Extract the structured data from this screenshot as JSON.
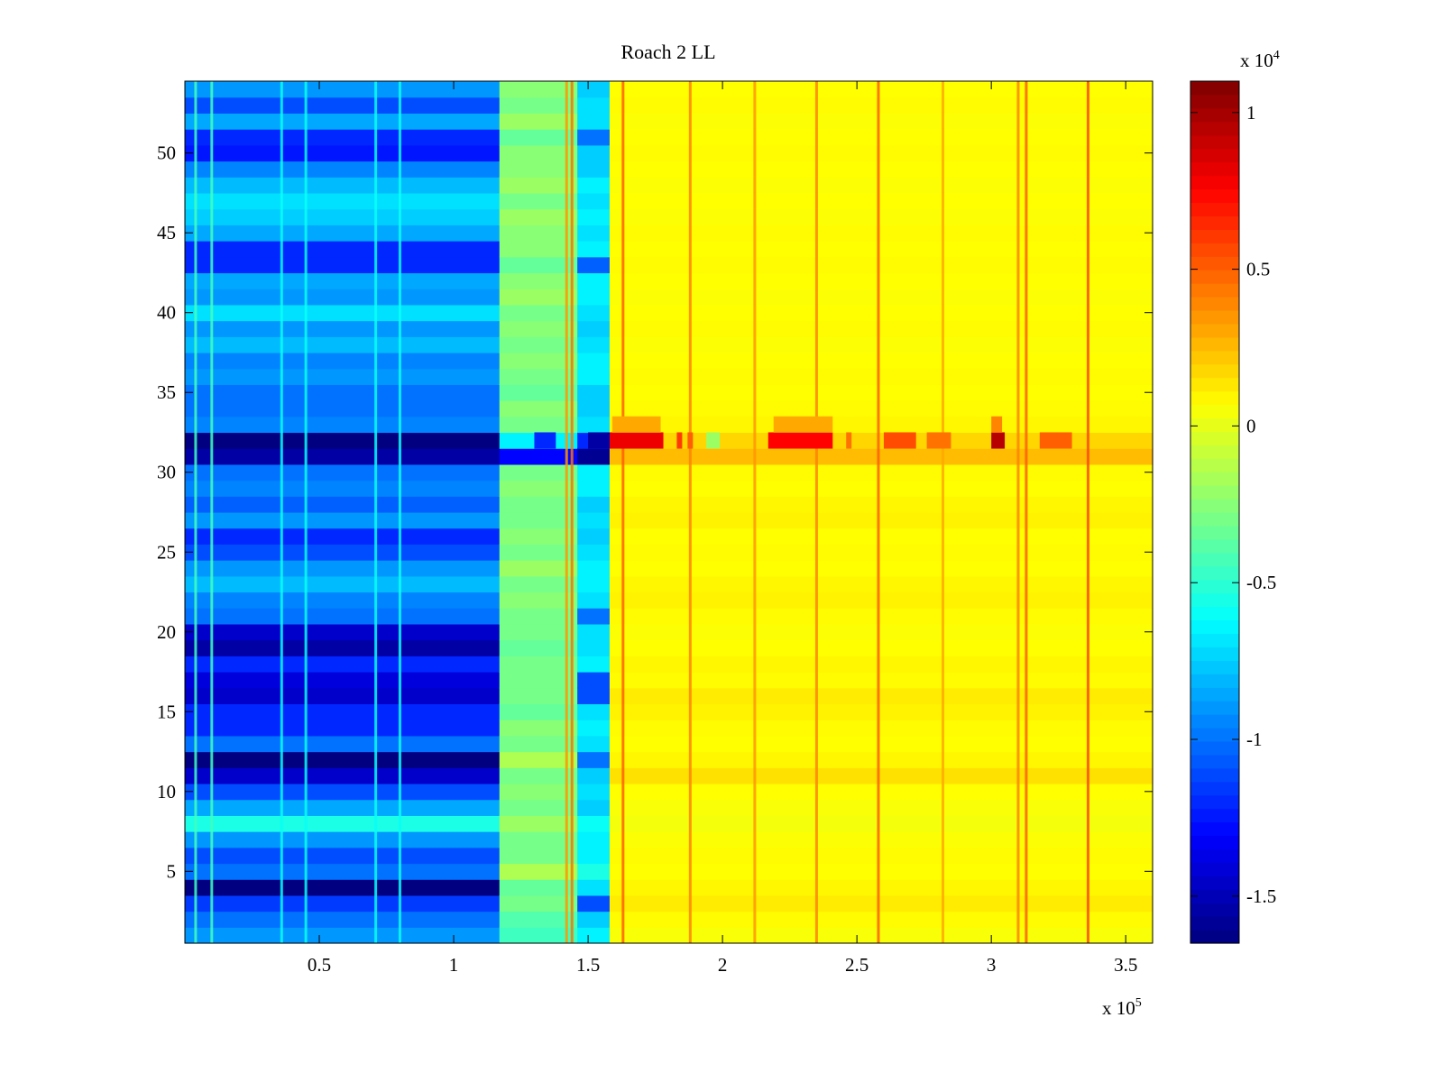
{
  "chart_data": {
    "type": "heatmap",
    "title": "Roach 2 LL",
    "xlabel": "",
    "ylabel": "",
    "xlim": [
      0,
      360000
    ],
    "ylim": [
      0.5,
      54.5
    ],
    "x_ticks": [
      50000,
      100000,
      150000,
      200000,
      250000,
      300000,
      350000
    ],
    "x_tick_labels": [
      "0.5",
      "1",
      "1.5",
      "2",
      "2.5",
      "3",
      "3.5"
    ],
    "x_multiplier": {
      "base": "x 10",
      "exp": "5"
    },
    "y_ticks": [
      5,
      10,
      15,
      20,
      25,
      30,
      35,
      40,
      45,
      50
    ],
    "y_tick_labels": [
      "5",
      "10",
      "15",
      "20",
      "25",
      "30",
      "35",
      "40",
      "45",
      "50"
    ],
    "colorbar": {
      "colormap": "jet",
      "clim": [
        -16500,
        11000
      ],
      "ticks": [
        -15000,
        -10000,
        -5000,
        0,
        5000,
        10000
      ],
      "tick_labels": [
        "-1.5",
        "-1",
        "-0.5",
        "0",
        "0.5",
        "1"
      ],
      "multiplier": {
        "base": "x 10",
        "exp": "4"
      }
    },
    "rows": 54,
    "x_segments": [
      {
        "name": "region-1",
        "x_start": 0,
        "x_end": 117000
      },
      {
        "name": "region-2",
        "x_start": 117000,
        "x_end": 146000
      },
      {
        "name": "region-3",
        "x_start": 146000,
        "x_end": 158000
      },
      {
        "name": "region-4",
        "x_start": 158000,
        "x_end": 360000
      }
    ],
    "row_values": {
      "region-1": [
        -9000,
        -10000,
        -11500,
        -16500,
        -10000,
        -11000,
        -9000,
        -5500,
        -8500,
        -11000,
        -14500,
        -16500,
        -10000,
        -12000,
        -12000,
        -14500,
        -14000,
        -12000,
        -15500,
        -14500,
        -10000,
        -9500,
        -8000,
        -9000,
        -11000,
        -12000,
        -9000,
        -10500,
        -9500,
        -10000,
        -15500,
        -16500,
        -9500,
        -10000,
        -10000,
        -9000,
        -9500,
        -8000,
        -9000,
        -7000,
        -9000,
        -8500,
        -12000,
        -12000,
        -8500,
        -7500,
        -7000,
        -8000,
        -9500,
        -12500,
        -12000,
        -8500,
        -11000,
        -9000
      ],
      "region-2": [
        -4500,
        -4000,
        -3000,
        -3500,
        -1500,
        -3000,
        -3000,
        -2000,
        -3000,
        -2500,
        -3000,
        -1500,
        -3000,
        -2500,
        -3500,
        -3000,
        -3000,
        -3000,
        -3500,
        -3000,
        -3000,
        -2500,
        -3000,
        -2000,
        -3000,
        -2500,
        -3000,
        -3000,
        -2500,
        -3000,
        -13000,
        -6500,
        -3000,
        -2500,
        -3500,
        -3000,
        -2500,
        -3000,
        -2500,
        -3000,
        -2000,
        -2500,
        -3500,
        -2500,
        -2500,
        -2000,
        -3000,
        -2000,
        -2500,
        -2500,
        -3500,
        -2000,
        -3000,
        -2500
      ],
      "region-3": [
        -6500,
        -7500,
        -11000,
        -7000,
        -5500,
        -6500,
        -6500,
        -6000,
        -7500,
        -7000,
        -7500,
        -10000,
        -7000,
        -6500,
        -7000,
        -11000,
        -11000,
        -6500,
        -7000,
        -7000,
        -10000,
        -7000,
        -6500,
        -6500,
        -7000,
        -7500,
        -7000,
        -7500,
        -6500,
        -6500,
        -16000,
        -12000,
        -7000,
        -7500,
        -7500,
        -6500,
        -6500,
        -7000,
        -7500,
        -7000,
        -6500,
        -6500,
        -10500,
        -6500,
        -7000,
        -6500,
        -7000,
        -6500,
        -7500,
        -7500,
        -10000,
        -7000,
        -7000,
        -7500
      ],
      "region-4": [
        500,
        800,
        1200,
        900,
        700,
        800,
        600,
        400,
        500,
        700,
        1500,
        900,
        700,
        800,
        1000,
        1200,
        800,
        900,
        700,
        600,
        800,
        1000,
        900,
        700,
        800,
        700,
        1000,
        900,
        700,
        800,
        2500,
        1800,
        900,
        800,
        700,
        800,
        700,
        600,
        800,
        700,
        600,
        700,
        800,
        700,
        800,
        600,
        700,
        600,
        700,
        800,
        700,
        600,
        800,
        700
      ]
    },
    "vertical_streaks": [
      {
        "x": 4000,
        "value": -4500
      },
      {
        "x": 10000,
        "value": -4500
      },
      {
        "x": 36000,
        "value": -6000
      },
      {
        "x": 45000,
        "value": -6000
      },
      {
        "x": 71000,
        "value": -6000
      },
      {
        "x": 80000,
        "value": -6000
      },
      {
        "x": 142000,
        "value": 3500
      },
      {
        "x": 144000,
        "value": 4500
      },
      {
        "x": 163000,
        "value": 5000
      },
      {
        "x": 188000,
        "value": 4000
      },
      {
        "x": 212000,
        "value": 3500
      },
      {
        "x": 235000,
        "value": 4000
      },
      {
        "x": 258000,
        "value": 5000
      },
      {
        "x": 282000,
        "value": 3000
      },
      {
        "x": 310000,
        "value": 4000
      },
      {
        "x": 313000,
        "value": 5000
      },
      {
        "x": 336000,
        "value": 5500
      }
    ],
    "hot_segments": [
      {
        "row": 32,
        "x_start": 158000,
        "x_end": 178000,
        "value": 8000
      },
      {
        "row": 32,
        "x_start": 183000,
        "x_end": 185000,
        "value": 6000
      },
      {
        "row": 32,
        "x_start": 187000,
        "x_end": 189000,
        "value": 5000
      },
      {
        "row": 32,
        "x_start": 194000,
        "x_end": 199000,
        "value": -2000
      },
      {
        "row": 32,
        "x_start": 217000,
        "x_end": 241000,
        "value": 7500
      },
      {
        "row": 32,
        "x_start": 246000,
        "x_end": 248000,
        "value": 4500
      },
      {
        "row": 32,
        "x_start": 260000,
        "x_end": 272000,
        "value": 5500
      },
      {
        "row": 32,
        "x_start": 276000,
        "x_end": 285000,
        "value": 4500
      },
      {
        "row": 32,
        "x_start": 300000,
        "x_end": 305000,
        "value": 9500
      },
      {
        "row": 32,
        "x_start": 318000,
        "x_end": 330000,
        "value": 5000
      },
      {
        "row": 32,
        "x_start": 150000,
        "x_end": 158000,
        "value": -15500
      },
      {
        "row": 32,
        "x_start": 130000,
        "x_end": 138000,
        "value": -12000
      },
      {
        "row": 33,
        "x_start": 159000,
        "x_end": 177000,
        "value": 3000
      },
      {
        "row": 33,
        "x_start": 219000,
        "x_end": 241000,
        "value": 3000
      },
      {
        "row": 33,
        "x_start": 300000,
        "x_end": 304000,
        "value": 4000
      }
    ]
  }
}
